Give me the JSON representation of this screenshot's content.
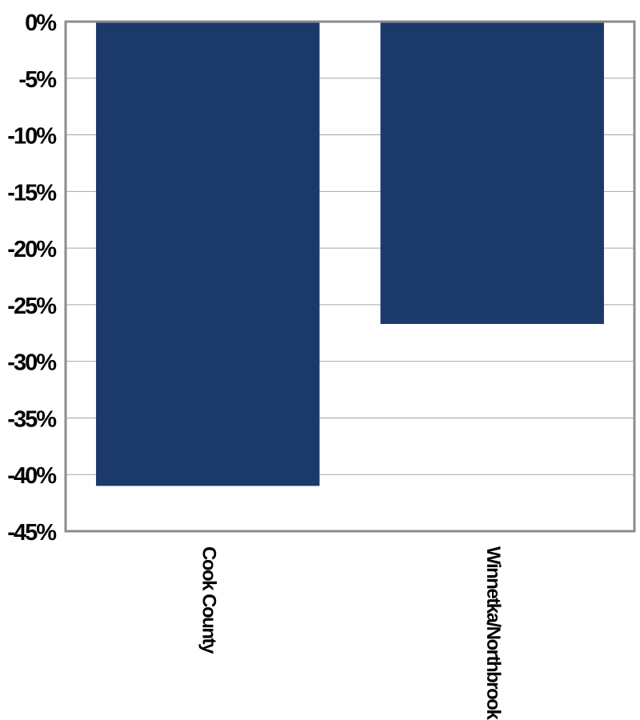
{
  "chart_data": {
    "type": "bar",
    "title": "",
    "xlabel": "",
    "ylabel": "",
    "categories": [
      "Cook County",
      "Winnetka/Northbrook"
    ],
    "series": [
      {
        "values": [
          -41,
          -26.7
        ]
      }
    ],
    "ylim": [
      -45,
      0
    ],
    "yticks": [
      0,
      -5,
      -10,
      -15,
      -20,
      -25,
      -30,
      -35,
      -40,
      -45
    ],
    "ytick_labels": [
      "0%",
      "-5%",
      "-10%",
      "-15%",
      "-20%",
      "-25%",
      "-30%",
      "-35%",
      "-40%",
      "-45%"
    ],
    "grid": true,
    "legend": "none"
  },
  "colors": {
    "bar": "#1b3a6b",
    "gridline": "#a6a6a6",
    "frame": "#8c8c8c"
  }
}
